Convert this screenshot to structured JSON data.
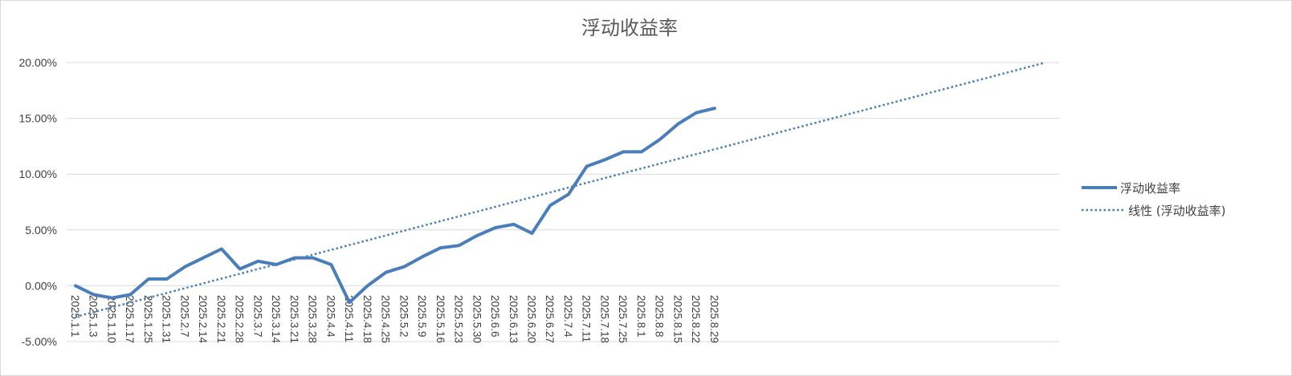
{
  "chart_data": {
    "type": "line",
    "title": "浮动收益率",
    "xlabel": "",
    "ylabel": "",
    "ylim": [
      -0.05,
      0.2
    ],
    "ytick_values": [
      -0.05,
      0,
      0.05,
      0.1,
      0.15,
      0.2
    ],
    "ytick_labels": [
      "-5.00%",
      "0.00%",
      "5.00%",
      "10.00%",
      "15.00%",
      "20.00%"
    ],
    "categories": [
      "2025.1.1",
      "2025.1.3",
      "2025.1.10",
      "2025.1.17",
      "2025.1.25",
      "2025.1.31",
      "2025.2.7",
      "2025.2.14",
      "2025.2.21",
      "2025.2.28",
      "2025.3.7",
      "2025.3.14",
      "2025.3.21",
      "2025.3.28",
      "2025.4.4",
      "2025.4.11",
      "2025.4.18",
      "2025.4.25",
      "2025.5.2",
      "2025.5.9",
      "2025.5.16",
      "2025.5.23",
      "2025.5.30",
      "2025.6.6",
      "2025.6.13",
      "2025.6.20",
      "2025.6.27",
      "2025.7.4",
      "2025.7.11",
      "2025.7.18",
      "2025.7.25",
      "2025.8.1",
      "2025.8.8",
      "2025.8.15",
      "2025.8.22",
      "2025.8.29"
    ],
    "series": [
      {
        "name": "浮动收益率",
        "color": "#4a7ebb",
        "style": "solid",
        "values": [
          0.0,
          -0.008,
          -0.011,
          -0.008,
          0.006,
          0.006,
          0.017,
          0.025,
          0.033,
          0.015,
          0.022,
          0.019,
          0.025,
          0.025,
          0.019,
          -0.015,
          0.0,
          0.012,
          0.017,
          0.026,
          0.034,
          0.036,
          0.045,
          0.052,
          0.055,
          0.047,
          0.072,
          0.082,
          0.107,
          0.113,
          0.12,
          0.12,
          0.131,
          0.145,
          0.155,
          0.159
        ]
      },
      {
        "name": "线性 (浮动收益率)",
        "color": "#4a7ebb",
        "style": "dotted",
        "trendline_of": "浮动收益率",
        "forward_periods": 18
      }
    ],
    "grid": true,
    "legend_position": "right"
  }
}
